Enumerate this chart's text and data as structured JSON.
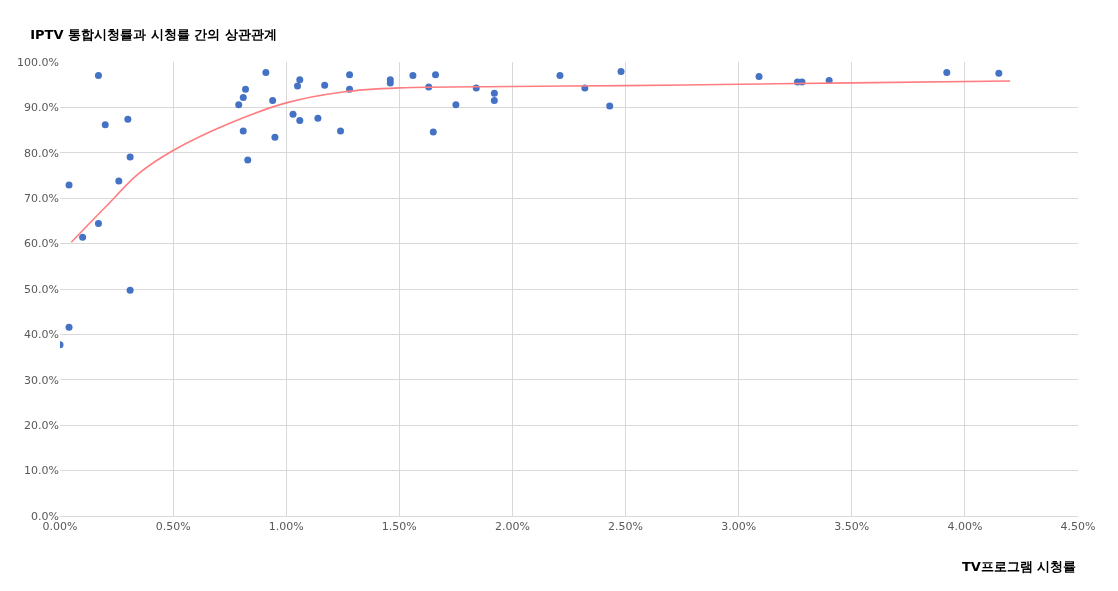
{
  "chart_data": {
    "type": "scatter",
    "title": "IPTV 통합시청률과 시청률 간의 상관관계",
    "xlabel": "TV프로그램 시청률",
    "xlim": [
      0,
      4.5
    ],
    "ylim": [
      0,
      100
    ],
    "xticks": [
      {
        "value": 0,
        "label": "0.00%"
      },
      {
        "value": 0.5,
        "label": "0.50%"
      },
      {
        "value": 1,
        "label": "1.00%"
      },
      {
        "value": 1.5,
        "label": "1.50%"
      },
      {
        "value": 2,
        "label": "2.00%"
      },
      {
        "value": 2.5,
        "label": "2.50%"
      },
      {
        "value": 3,
        "label": "3.00%"
      },
      {
        "value": 3.5,
        "label": "3.50%"
      },
      {
        "value": 4,
        "label": "4.00%"
      },
      {
        "value": 4.5,
        "label": "4.50%"
      }
    ],
    "yticks": [
      {
        "value": 0,
        "label": "0.0%"
      },
      {
        "value": 10,
        "label": "10.0%"
      },
      {
        "value": 20,
        "label": "20.0%"
      },
      {
        "value": 30,
        "label": "30.0%"
      },
      {
        "value": 40,
        "label": "40.0%"
      },
      {
        "value": 50,
        "label": "50.0%"
      },
      {
        "value": 60,
        "label": "60.0%"
      },
      {
        "value": 70,
        "label": "70.0%"
      },
      {
        "value": 80,
        "label": "80.0%"
      },
      {
        "value": 90,
        "label": "90.0%"
      },
      {
        "value": 100,
        "label": "100.0%"
      }
    ],
    "grid": true,
    "series": [
      {
        "color": "#4472c4",
        "marker": "circle",
        "x": [
          0.0,
          0.04,
          0.04,
          0.1,
          0.17,
          0.17,
          0.2,
          0.26,
          0.3,
          0.31,
          0.31,
          0.79,
          0.81,
          0.81,
          0.82,
          0.83,
          0.91,
          0.94,
          0.95,
          1.03,
          1.05,
          1.06,
          1.06,
          1.14,
          1.17,
          1.24,
          1.28,
          1.28,
          1.46,
          1.46,
          1.56,
          1.63,
          1.65,
          1.66,
          1.75,
          1.84,
          1.92,
          1.92,
          2.21,
          2.32,
          2.43,
          2.48,
          3.09,
          3.26,
          3.28,
          3.4,
          3.92,
          4.15
        ],
        "values": [
          37.7,
          41.6,
          72.9,
          61.4,
          97.0,
          64.4,
          86.2,
          73.8,
          87.4,
          79.1,
          49.7,
          90.6,
          84.8,
          92.2,
          94.0,
          78.4,
          97.7,
          91.5,
          83.4,
          88.5,
          94.7,
          96.1,
          87.1,
          87.6,
          94.9,
          84.8,
          97.2,
          94.0,
          96.1,
          95.4,
          97.0,
          94.5,
          84.6,
          97.2,
          90.6,
          94.3,
          93.1,
          91.5,
          97.0,
          94.3,
          90.3,
          97.9,
          96.8,
          95.6,
          95.6,
          95.9,
          97.7,
          97.5
        ]
      },
      {
        "type": "line",
        "color": "#ff7c80",
        "marker": "none",
        "line_style": "solid",
        "x": [
          0.05,
          0.2,
          0.35,
          0.5,
          0.75,
          1.0,
          1.25,
          1.5,
          2.0,
          2.5,
          3.0,
          3.5,
          4.2
        ],
        "values": [
          60.3,
          68,
          75.5,
          80.5,
          86.5,
          91,
          93.4,
          94.3,
          94.6,
          94.8,
          95.1,
          95.4,
          95.8
        ]
      }
    ]
  }
}
